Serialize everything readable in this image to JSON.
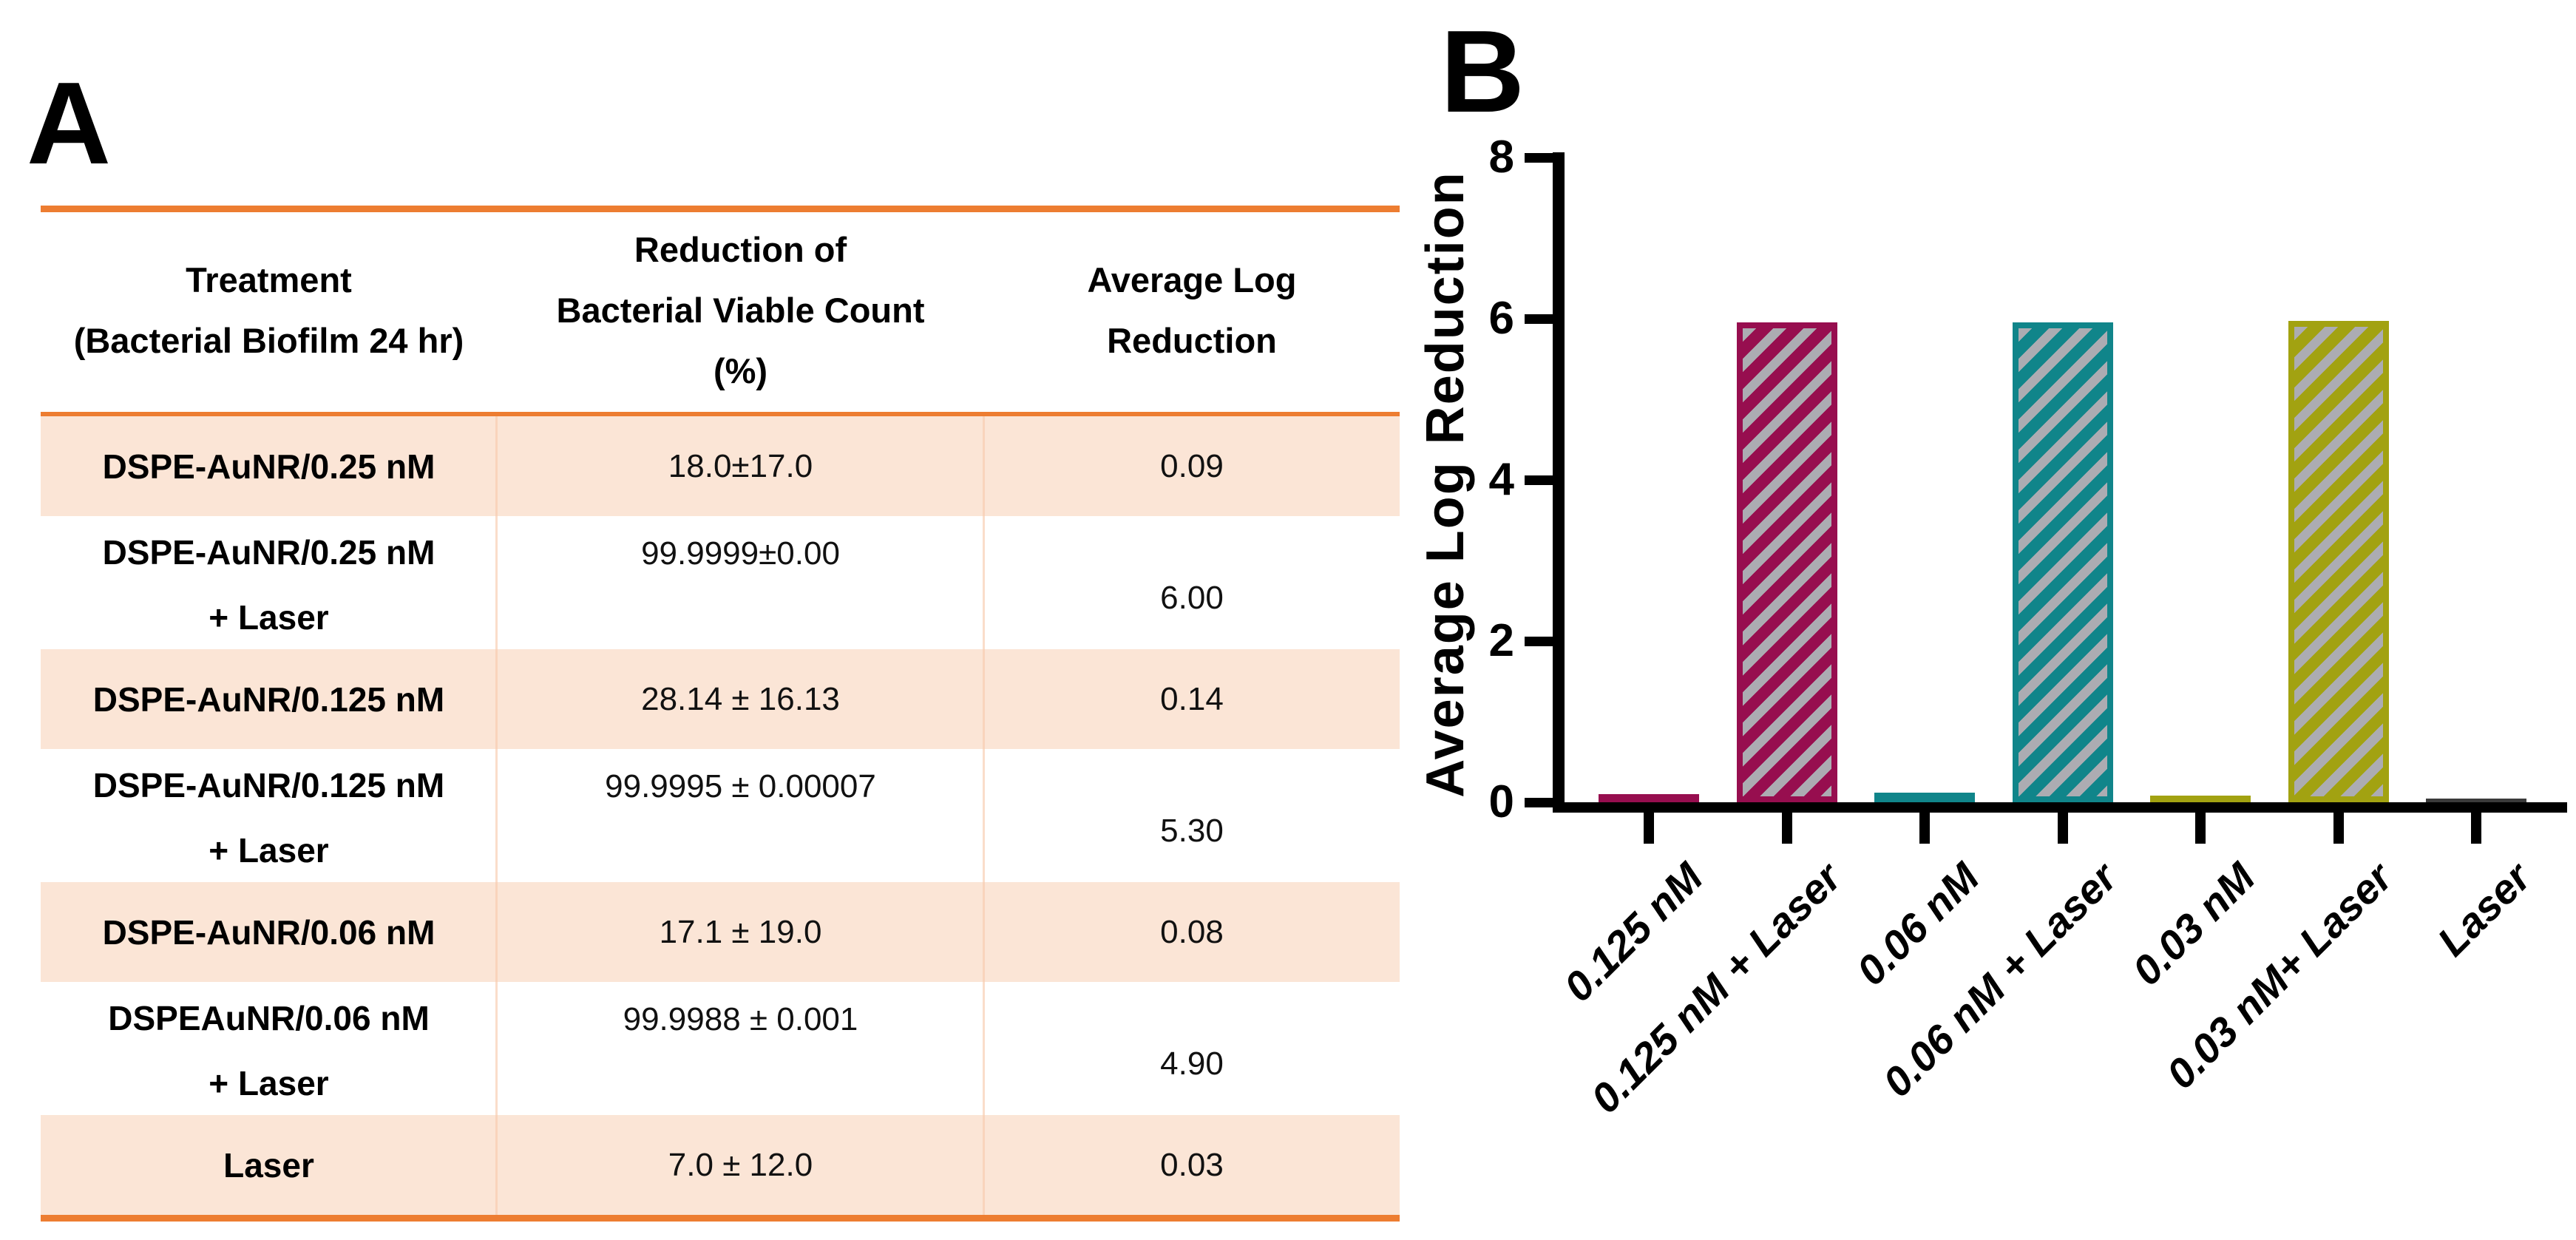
{
  "panel_a": {
    "label": "A",
    "table": {
      "headers": [
        {
          "lines": [
            "Treatment",
            "(Bacterial Biofilm 24 hr)"
          ]
        },
        {
          "lines": [
            "Reduction of",
            "Bacterial Viable Count",
            "(%)"
          ]
        },
        {
          "lines": [
            "Average Log",
            "Reduction"
          ]
        }
      ],
      "rows": [
        {
          "treatment": "DSPE-AuNR/0.25 nM",
          "treatment2": "",
          "reduction": "18.0±17.0",
          "log": "0.09",
          "shaded": true
        },
        {
          "treatment": "DSPE-AuNR/0.25 nM",
          "treatment2": "+ Laser",
          "reduction": "99.9999±0.00",
          "log": "6.00",
          "shaded": false
        },
        {
          "treatment": "DSPE-AuNR/0.125 nM",
          "treatment2": "",
          "reduction": "28.14 ± 16.13",
          "log": "0.14",
          "shaded": true
        },
        {
          "treatment": "DSPE-AuNR/0.125 nM",
          "treatment2": "+ Laser",
          "reduction": "99.9995 ± 0.00007",
          "log": "5.30",
          "shaded": false
        },
        {
          "treatment": "DSPE-AuNR/0.06 nM",
          "treatment2": "",
          "reduction": "17.1 ± 19.0",
          "log": "0.08",
          "shaded": true
        },
        {
          "treatment": "DSPEAuNR/0.06 nM",
          "treatment2": "+ Laser",
          "reduction": "99.9988 ± 0.001",
          "log": "4.90",
          "shaded": false
        },
        {
          "treatment": "Laser",
          "treatment2": "",
          "reduction": "7.0 ± 12.0",
          "log": "0.03",
          "shaded": true
        }
      ]
    }
  },
  "panel_b": {
    "label": "B",
    "chart_data": {
      "type": "bar",
      "categories": [
        "0.125 nM",
        "0.125 nM + Laser",
        "0.06 nM",
        "0.06 nM + Laser",
        "0.03 nM",
        "0.03 nM+ Laser",
        "Laser"
      ],
      "values": [
        0.1,
        5.95,
        0.12,
        5.95,
        0.08,
        5.97,
        0.02
      ],
      "hatched": [
        false,
        true,
        false,
        true,
        false,
        true,
        false
      ],
      "bar_colors": [
        "#970E4F",
        "#970E4F",
        "#10858A",
        "#10858A",
        "#A2A211",
        "#A2A211",
        "#3B3B3B"
      ],
      "title": "",
      "xlabel": "",
      "ylabel": "Average Log Reduction",
      "yticks": [
        0,
        2,
        4,
        6,
        8
      ],
      "ylim": [
        0,
        8
      ],
      "grid": false,
      "legend": "none"
    }
  },
  "colors": {
    "orange_rule": "#ED7D31",
    "peach_band": "#FBE5D6",
    "hatch_stripe": "#ACACB2",
    "axis_black": "#000000"
  }
}
